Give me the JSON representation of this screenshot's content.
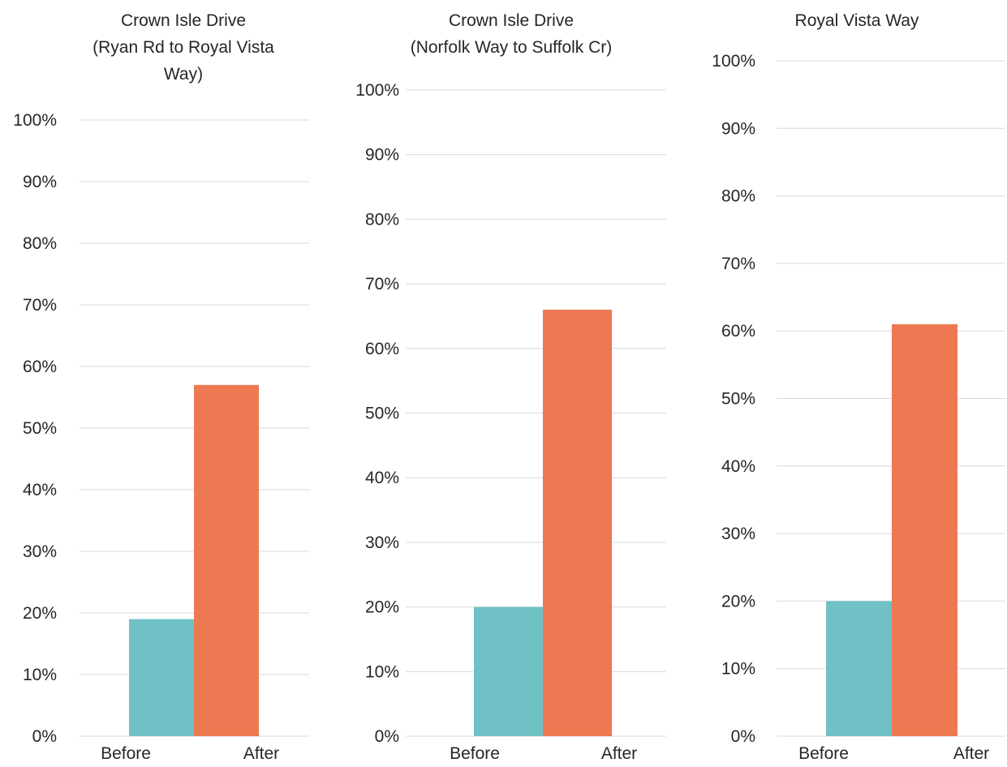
{
  "chart_data": [
    {
      "type": "bar",
      "title": "Crown Isle Drive (Ryan Rd to Royal Vista Way)",
      "title_lines": [
        "Crown Isle Drive",
        "(Ryan Rd to Royal Vista",
        "Way)"
      ],
      "categories": [
        "Before",
        "After"
      ],
      "values": [
        0.19,
        0.57
      ],
      "colors": [
        "#6fc1c6",
        "#ed7953"
      ],
      "ylim": [
        0,
        1
      ],
      "yticks": [
        "0%",
        "10%",
        "20%",
        "30%",
        "40%",
        "50%",
        "60%",
        "70%",
        "80%",
        "90%",
        "100%"
      ],
      "grid": true
    },
    {
      "type": "bar",
      "title": "Crown Isle Drive (Norfolk Way to Suffolk Cr)",
      "title_lines": [
        "Crown Isle Drive",
        "(Norfolk Way to Suffolk Cr)"
      ],
      "categories": [
        "Before",
        "After"
      ],
      "values": [
        0.2,
        0.66
      ],
      "colors": [
        "#6fc1c6",
        "#ed7953"
      ],
      "ylim": [
        0,
        1
      ],
      "yticks": [
        "0%",
        "10%",
        "20%",
        "30%",
        "40%",
        "50%",
        "60%",
        "70%",
        "80%",
        "90%",
        "100%"
      ],
      "grid": true
    },
    {
      "type": "bar",
      "title": "Royal Vista Way",
      "title_lines": [
        "Royal Vista Way"
      ],
      "categories": [
        "Before",
        "After"
      ],
      "values": [
        0.2,
        0.61
      ],
      "colors": [
        "#6fc1c6",
        "#ed7953"
      ],
      "ylim": [
        0,
        1
      ],
      "yticks": [
        "0%",
        "10%",
        "20%",
        "30%",
        "40%",
        "50%",
        "60%",
        "70%",
        "80%",
        "90%",
        "100%"
      ],
      "grid": true
    }
  ]
}
